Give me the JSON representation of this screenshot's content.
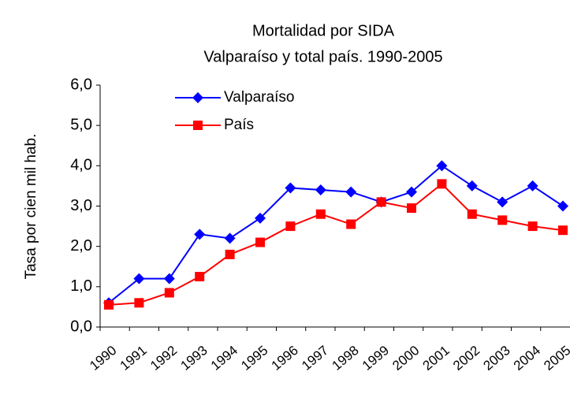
{
  "chart_data": {
    "type": "line",
    "title": "Mortalidad por SIDA",
    "subtitle": "Valparaíso y total país. 1990-2005",
    "y_label": "Tasa por cien mil hab.",
    "categories": [
      "1990",
      "1991",
      "1992",
      "1993",
      "1994",
      "1995",
      "1996",
      "1997",
      "1998",
      "1999",
      "2000",
      "2001",
      "2002",
      "2003",
      "2004",
      "2005"
    ],
    "series": [
      {
        "name": "Valparaíso",
        "color": "#0000ff",
        "marker": "diamond",
        "values": [
          0.6,
          1.2,
          1.2,
          2.3,
          2.2,
          2.7,
          3.45,
          3.4,
          3.35,
          3.1,
          3.35,
          4.0,
          3.5,
          3.1,
          3.5,
          3.0
        ]
      },
      {
        "name": "País",
        "color": "#ff0000",
        "marker": "square",
        "values": [
          0.55,
          0.6,
          0.85,
          1.25,
          1.8,
          2.1,
          2.5,
          2.8,
          2.55,
          3.1,
          2.95,
          3.55,
          2.8,
          2.65,
          2.5,
          2.4
        ]
      }
    ],
    "ylim": [
      0,
      6
    ],
    "yticks": [
      {
        "value": 0,
        "label": "0,0"
      },
      {
        "value": 1,
        "label": "1,0"
      },
      {
        "value": 2,
        "label": "2,0"
      },
      {
        "value": 3,
        "label": "3,0"
      },
      {
        "value": 4,
        "label": "4,0"
      },
      {
        "value": 5,
        "label": "5,0"
      },
      {
        "value": 6,
        "label": "6,0"
      }
    ],
    "grid": false,
    "legend": "top-left"
  }
}
